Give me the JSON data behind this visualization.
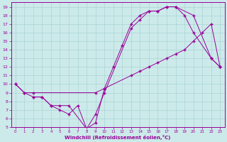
{
  "xlabel": "Windchill (Refroidissement éolien,°C)",
  "xlim": [
    -0.5,
    23.5
  ],
  "ylim": [
    5,
    19.5
  ],
  "xticks": [
    0,
    1,
    2,
    3,
    4,
    5,
    6,
    7,
    8,
    9,
    10,
    11,
    12,
    13,
    14,
    15,
    16,
    17,
    18,
    19,
    20,
    21,
    22,
    23
  ],
  "yticks": [
    5,
    6,
    7,
    8,
    9,
    10,
    11,
    12,
    13,
    14,
    15,
    16,
    17,
    18,
    19
  ],
  "background_color": "#cceaea",
  "grid_color": "#aad4d4",
  "line_color": "#990099",
  "line1_x": [
    0,
    1,
    2,
    3,
    4,
    5,
    6,
    8,
    9,
    10,
    13,
    14,
    15,
    16,
    17,
    18,
    20,
    22,
    23
  ],
  "line1_y": [
    10,
    9,
    8.5,
    8.5,
    7.5,
    7.5,
    7.5,
    4.8,
    6.5,
    9,
    16.5,
    17.5,
    18.5,
    18.5,
    19,
    19,
    18,
    13,
    12
  ],
  "line2_x": [
    0,
    1,
    2,
    9,
    10,
    13,
    14,
    15,
    16,
    17,
    18,
    19,
    20,
    21,
    22,
    23
  ],
  "line2_y": [
    10,
    9,
    9,
    9,
    9.5,
    11,
    11.5,
    12,
    12.5,
    13,
    13.5,
    14,
    15,
    16,
    17,
    12
  ],
  "line3_x": [
    2,
    3,
    4,
    5,
    6,
    7,
    8,
    9,
    10,
    11,
    12,
    13,
    14,
    15,
    16,
    17,
    18,
    19,
    20,
    22,
    23
  ],
  "line3_y": [
    8.5,
    8.5,
    7.5,
    7,
    6.5,
    7.5,
    4.8,
    5.5,
    9.5,
    12,
    14.5,
    17,
    18,
    18.5,
    18.5,
    19,
    19,
    18,
    16,
    13,
    12
  ]
}
